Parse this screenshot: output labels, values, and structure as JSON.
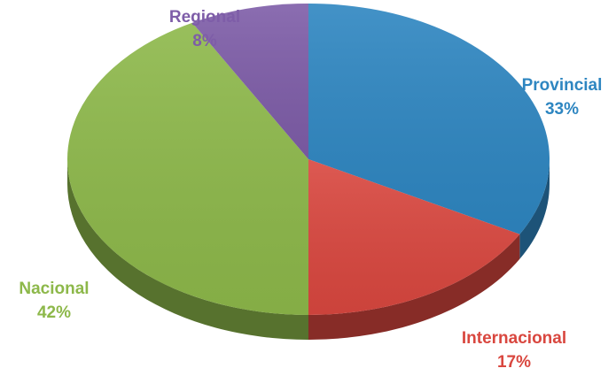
{
  "chart_data": {
    "type": "pie",
    "style": "3d",
    "title": "",
    "slices": [
      {
        "category": "Provincial",
        "value": 33,
        "percent_label": "33%",
        "color": "#2E86C1"
      },
      {
        "category": "Internacional",
        "value": 17,
        "percent_label": "17%",
        "color": "#D9473F"
      },
      {
        "category": "Nacional",
        "value": 42,
        "percent_label": "42%",
        "color": "#8DB84A"
      },
      {
        "category": "Regional",
        "value": 8,
        "percent_label": "8%",
        "color": "#7E5DA8"
      }
    ],
    "legend": "none",
    "data_labels": "outside"
  }
}
